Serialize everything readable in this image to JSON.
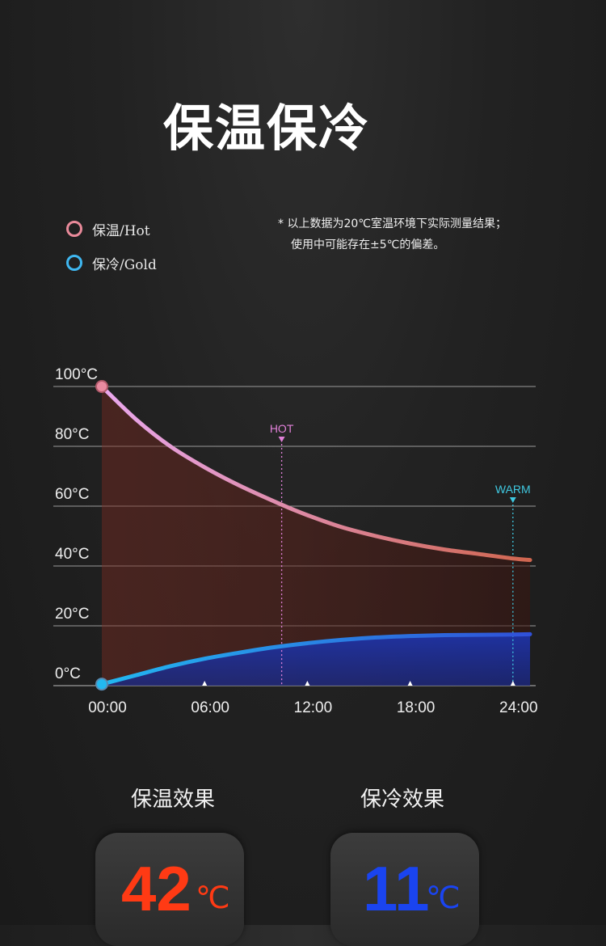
{
  "page_title": "保温保冷",
  "legend": {
    "hot": {
      "label": "保温/Hot",
      "color": "#e98a9a"
    },
    "cold": {
      "label": "保冷/Gold",
      "color": "#3fb7f0"
    }
  },
  "note": {
    "line1": "* 以上数据为20℃室温环境下实际测量结果；",
    "line2": "使用中可能存在±5℃的偏差。"
  },
  "chart_data": {
    "type": "line",
    "x_unit": "hour",
    "x_ticks": [
      "00:00",
      "06:00",
      "12:00",
      "18:00",
      "24:00"
    ],
    "y_ticks": [
      "0°C",
      "20°C",
      "40°C",
      "60°C",
      "80°C",
      "100°C"
    ],
    "ylim": [
      0,
      100
    ],
    "xlim": [
      0,
      25
    ],
    "grid": true,
    "series": [
      {
        "name": "保温/Hot",
        "color_start": "#e9a8ee",
        "color_end": "#d0664f",
        "x": [
          0,
          2,
          4,
          6,
          8,
          10.5,
          12,
          14,
          16,
          18,
          20,
          22,
          24,
          25
        ],
        "y": [
          100,
          89,
          80,
          73,
          67,
          60.5,
          57,
          53,
          50,
          47.5,
          45.5,
          44,
          42.5,
          42
        ]
      },
      {
        "name": "保冷/Gold",
        "color_start": "#22b8f0",
        "color_end": "#3050d8",
        "x": [
          0,
          2,
          4,
          6,
          8,
          10,
          12,
          14,
          16,
          18,
          20,
          22,
          24,
          25
        ],
        "y": [
          0.5,
          3.5,
          6.5,
          9,
          11,
          12.8,
          14.2,
          15.3,
          16.1,
          16.6,
          16.9,
          17,
          17.1,
          17.2
        ]
      }
    ],
    "markers": [
      {
        "label": "HOT",
        "x": 10.5,
        "y": 60.5,
        "color": "#e080d8"
      },
      {
        "label": "WARM",
        "x": 24,
        "y": 42.5,
        "color": "#3fc8e0"
      }
    ]
  },
  "results": {
    "hot": {
      "label": "保温效果",
      "value": "42",
      "unit": "℃",
      "color": "#ff3a14"
    },
    "cold": {
      "label": "保冷效果",
      "value": "11",
      "unit": "℃",
      "color": "#1a44f0"
    }
  }
}
